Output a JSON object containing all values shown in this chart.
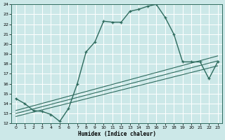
{
  "xlabel": "Humidex (Indice chaleur)",
  "xlim": [
    -0.5,
    23.5
  ],
  "ylim": [
    12,
    24
  ],
  "xticks": [
    0,
    1,
    2,
    3,
    4,
    5,
    6,
    7,
    8,
    9,
    10,
    11,
    12,
    13,
    14,
    15,
    16,
    17,
    18,
    19,
    20,
    21,
    22,
    23
  ],
  "yticks": [
    12,
    13,
    14,
    15,
    16,
    17,
    18,
    19,
    20,
    21,
    22,
    23,
    24
  ],
  "bg_color": "#cce8e8",
  "line_color": "#2e6b5e",
  "grid_color": "#ffffff",
  "main_line_x": [
    0,
    1,
    2,
    3,
    4,
    5,
    6,
    7,
    8,
    9,
    10,
    11,
    12,
    13,
    14,
    15,
    16,
    17,
    18,
    19,
    20,
    21,
    22,
    23
  ],
  "main_line_y": [
    14.5,
    14.0,
    13.3,
    13.2,
    12.9,
    12.2,
    13.5,
    16.0,
    19.2,
    20.2,
    22.3,
    22.2,
    22.2,
    23.3,
    23.5,
    23.8,
    24.0,
    22.7,
    21.0,
    18.2,
    18.2,
    18.2,
    16.5,
    18.2
  ],
  "ref_lines": [
    {
      "x": [
        0,
        23
      ],
      "y": [
        13.3,
        18.8
      ]
    },
    {
      "x": [
        0,
        23
      ],
      "y": [
        13.0,
        18.3
      ]
    },
    {
      "x": [
        0,
        23
      ],
      "y": [
        12.7,
        17.8
      ]
    }
  ]
}
